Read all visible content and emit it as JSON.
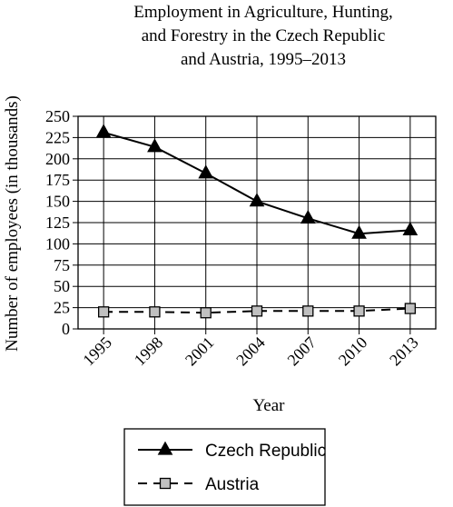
{
  "chart_data": {
    "type": "line",
    "title_lines": [
      "Employment in Agriculture, Hunting,",
      "and Forestry in the Czech Republic",
      "and Austria, 1995–2013"
    ],
    "xlabel": "Year",
    "ylabel": "Number of employees (in thousands)",
    "x": [
      "1995",
      "1998",
      "2001",
      "2004",
      "2007",
      "2010",
      "2013"
    ],
    "y_ticks": [
      "0",
      "25",
      "50",
      "75",
      "100",
      "125",
      "150",
      "175",
      "200",
      "225",
      "250"
    ],
    "ylim": [
      0,
      250
    ],
    "grid": true,
    "legend_position": "bottom",
    "series": [
      {
        "name": "Czech Republic",
        "values": [
          231,
          214,
          183,
          150,
          130,
          112,
          116
        ],
        "marker": "filled-triangle",
        "line_style": "solid",
        "color": "#000000"
      },
      {
        "name": "Austria",
        "values": [
          20,
          20,
          19,
          21,
          21,
          21,
          24
        ],
        "marker": "gray-square",
        "line_style": "dashed",
        "color": "#000000",
        "marker_fill": "#c0c0c0"
      }
    ]
  }
}
